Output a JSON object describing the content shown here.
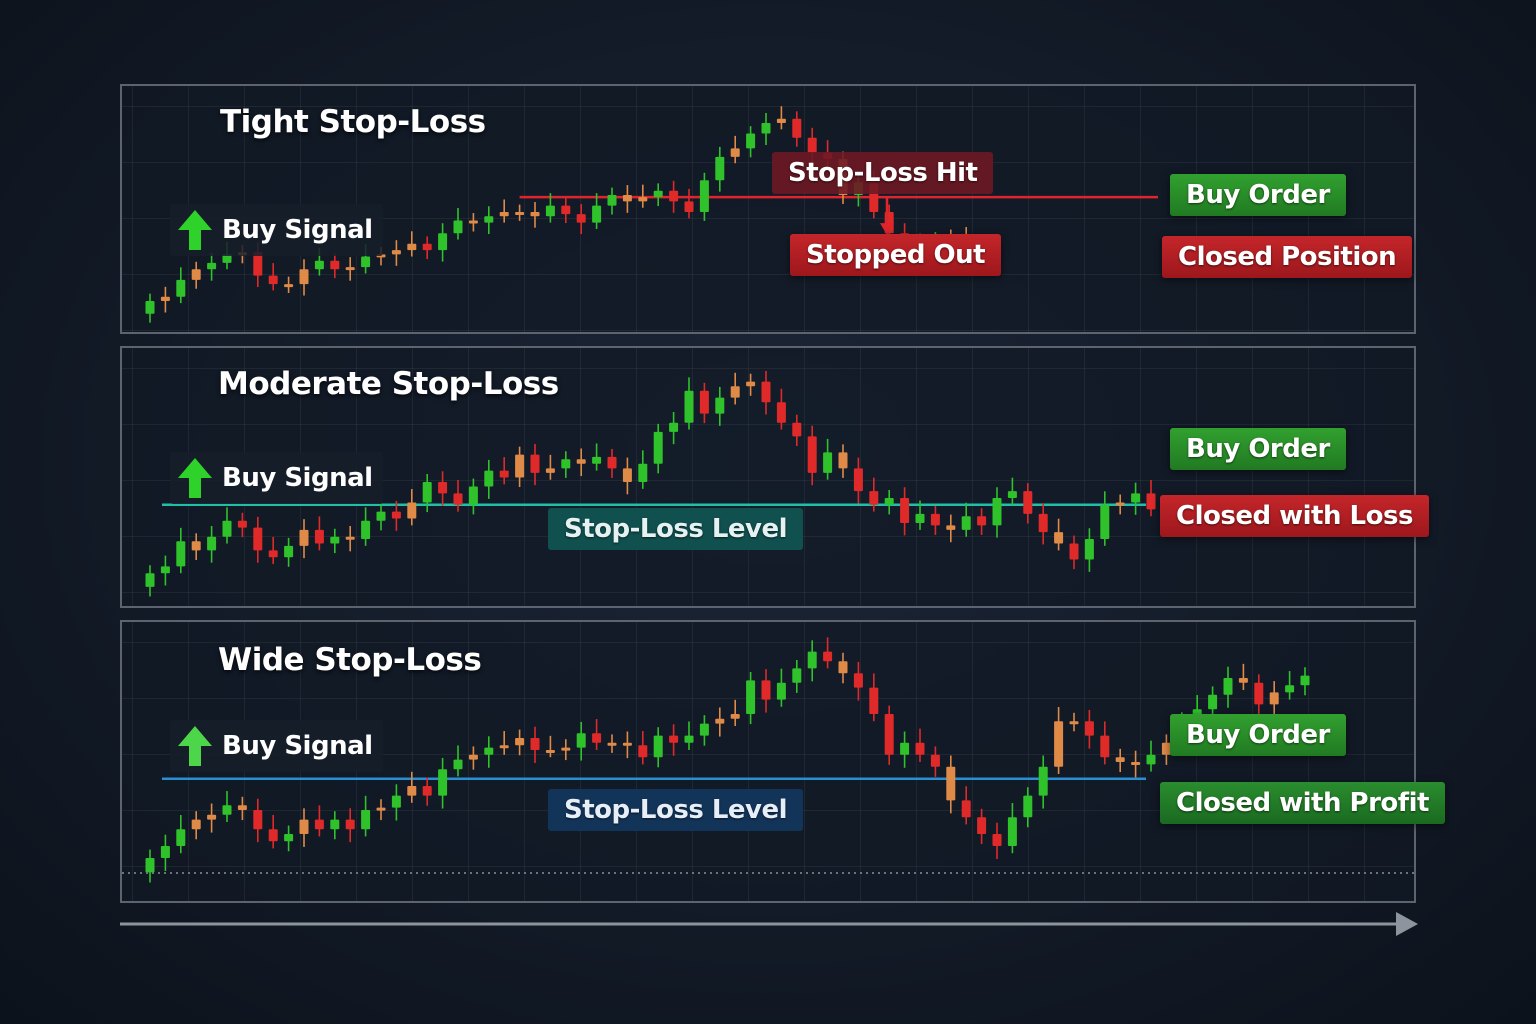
{
  "colors": {
    "up": "#2fc22b",
    "down": "#e02a2a",
    "neutral": "#e08a48",
    "tight_stop_line": "#e0242c",
    "moderate_stop_line": "#1fbfa8",
    "wide_stop_line": "#2a8fd0",
    "buy_order": "#2a8f2a",
    "closed_loss": "#b01e23",
    "closed_profit": "#1f7a28"
  },
  "panels": [
    {
      "title": "Tight Stop-Loss",
      "buy_signal": "Buy Signal",
      "buy_order": "Buy Order",
      "closed": "Closed Position",
      "stop_hit": "Stop-Loss Hit",
      "stopped_out": "Stopped Out"
    },
    {
      "title": "Moderate Stop-Loss",
      "buy_signal": "Buy Signal",
      "buy_order": "Buy Order",
      "closed": "Closed with Loss",
      "stop_level": "Stop-Loss Level"
    },
    {
      "title": "Wide Stop-Loss",
      "buy_signal": "Buy Signal",
      "buy_order": "Buy Order",
      "closed": "Closed with Profit",
      "stop_level": "Stop-Loss Level"
    }
  ],
  "chart_data": [
    {
      "type": "candlestick",
      "title": "Tight Stop-Loss",
      "xlabel": "",
      "ylabel": "",
      "ylim": [
        0,
        10
      ],
      "stop_loss": 5.7,
      "stop_loss_from_bar": 24,
      "series": [
        {
          "close": [
            0.8,
            1.0,
            1.8,
            2.3,
            2.6,
            3.0,
            3.1,
            2.0,
            1.6,
            1.6,
            2.3,
            2.7,
            2.3,
            2.4,
            2.9,
            3.0,
            3.2,
            3.5,
            3.2,
            4.0,
            4.6,
            4.5,
            4.8,
            5.0,
            5.0,
            4.8,
            5.3,
            4.9,
            4.5,
            5.3,
            5.8,
            5.5,
            5.7,
            6.0,
            5.5,
            5.0,
            6.5,
            7.6,
            8.0,
            8.7,
            9.2,
            9.4,
            8.5,
            7.8,
            7.5,
            5.8,
            6.4,
            5.0,
            4.0,
            3.4,
            3.0,
            3.7,
            3.6,
            3.7
          ]
        }
      ]
    },
    {
      "type": "candlestick",
      "title": "Moderate Stop-Loss",
      "xlabel": "",
      "ylabel": "",
      "ylim": [
        0,
        10
      ],
      "stop_loss": 4.0,
      "series": [
        {
          "close": [
            1.0,
            1.3,
            2.4,
            2.0,
            2.6,
            3.3,
            3.0,
            2.0,
            1.7,
            2.2,
            2.9,
            2.3,
            2.6,
            2.5,
            3.3,
            3.7,
            3.4,
            4.1,
            5.0,
            4.5,
            4.0,
            4.8,
            5.5,
            5.2,
            6.2,
            5.4,
            5.6,
            6.0,
            5.8,
            6.1,
            5.6,
            5.0,
            5.8,
            7.2,
            7.6,
            9.0,
            8.0,
            8.7,
            9.2,
            9.4,
            8.5,
            7.6,
            7.0,
            5.4,
            6.3,
            5.6,
            4.6,
            4.0,
            4.3,
            3.2,
            3.6,
            3.1,
            2.9,
            3.5,
            3.1,
            4.3,
            4.6,
            3.6,
            2.8,
            2.3,
            1.6,
            2.5,
            4.0,
            4.1,
            4.5,
            3.8
          ]
        }
      ]
    },
    {
      "type": "candlestick",
      "title": "Wide Stop-Loss",
      "xlabel": "",
      "ylabel": "",
      "ylim": [
        0,
        10
      ],
      "stop_loss": 4.3,
      "series": [
        {
          "close": [
            1.0,
            1.5,
            2.2,
            2.6,
            2.8,
            3.2,
            3.0,
            2.2,
            1.7,
            2.0,
            2.6,
            2.2,
            2.6,
            2.2,
            3.0,
            3.1,
            3.6,
            4.0,
            3.6,
            4.7,
            5.1,
            5.3,
            5.6,
            5.7,
            6.0,
            5.5,
            5.5,
            5.6,
            6.2,
            5.8,
            5.8,
            5.7,
            5.2,
            6.1,
            5.8,
            6.1,
            6.6,
            6.8,
            7.0,
            8.4,
            7.6,
            8.3,
            8.9,
            9.6,
            9.2,
            8.7,
            8.1,
            7.0,
            5.3,
            5.8,
            5.3,
            4.8,
            3.4,
            2.7,
            2.0,
            1.5,
            2.7,
            3.6,
            4.8,
            6.7,
            6.7,
            6.1,
            5.2,
            5.0,
            4.9,
            5.3,
            5.8,
            6.6,
            7.2,
            7.8,
            8.5,
            8.3,
            7.4,
            7.9,
            8.2,
            8.6
          ]
        }
      ]
    }
  ]
}
